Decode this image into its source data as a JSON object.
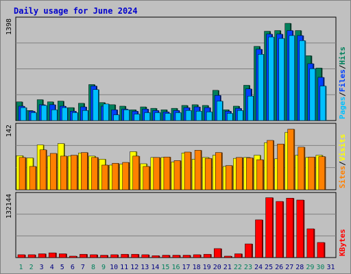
{
  "title": "Daily usage for June 2024",
  "colors": {
    "hits": "#00805c",
    "files": "#0040ff",
    "pages": "#00c0ff",
    "visits": "#ffff00",
    "sites": "#ff8000",
    "kbytes": "#ff0000",
    "weekend_day": "#00805c",
    "weekday": "#000080"
  },
  "chart_data": [
    {
      "type": "bar",
      "categories": [
        "1",
        "2",
        "3",
        "4",
        "5",
        "6",
        "7",
        "8",
        "9",
        "10",
        "11",
        "12",
        "13",
        "14",
        "15",
        "16",
        "17",
        "18",
        "19",
        "20",
        "21",
        "22",
        "23",
        "24",
        "25",
        "26",
        "27",
        "28",
        "29",
        "30",
        "31"
      ],
      "y_scale_label": "1398",
      "legend": [
        "Pages",
        "/",
        "Files",
        "/",
        "Hits"
      ],
      "ylim": [
        0,
        1398
      ],
      "series": [
        {
          "name": "Hits",
          "values": [
            260,
            140,
            290,
            260,
            270,
            180,
            240,
            500,
            250,
            220,
            200,
            150,
            190,
            170,
            150,
            170,
            210,
            220,
            210,
            420,
            150,
            200,
            490,
            1030,
            1240,
            1250,
            1350,
            1250,
            900,
            730,
            null
          ]
        },
        {
          "name": "Files",
          "values": [
            200,
            130,
            220,
            220,
            200,
            130,
            190,
            480,
            200,
            150,
            160,
            130,
            160,
            140,
            120,
            140,
            180,
            190,
            180,
            350,
            130,
            170,
            440,
            990,
            1200,
            1200,
            1250,
            1180,
            790,
            600,
            null
          ]
        },
        {
          "name": "Pages",
          "values": [
            180,
            110,
            210,
            150,
            180,
            110,
            140,
            430,
            230,
            80,
            150,
            90,
            110,
            110,
            100,
            110,
            140,
            130,
            120,
            270,
            100,
            140,
            340,
            920,
            1160,
            1140,
            1180,
            1110,
            720,
            480,
            null
          ]
        }
      ]
    },
    {
      "type": "bar",
      "categories": [
        "1",
        "2",
        "3",
        "4",
        "5",
        "6",
        "7",
        "8",
        "9",
        "10",
        "11",
        "12",
        "13",
        "14",
        "15",
        "16",
        "17",
        "18",
        "19",
        "20",
        "21",
        "22",
        "23",
        "24",
        "25",
        "26",
        "27",
        "28",
        "29",
        "30",
        "31"
      ],
      "y_scale_label": "142",
      "legend": [
        "Sites",
        "/",
        "Visits"
      ],
      "ylim": [
        0,
        142
      ],
      "series": [
        {
          "name": "Visits",
          "values": [
            76,
            71,
            100,
            75,
            103,
            75,
            82,
            75,
            68,
            55,
            57,
            85,
            58,
            72,
            72,
            62,
            82,
            68,
            72,
            77,
            52,
            70,
            72,
            77,
            105,
            69,
            128,
            77,
            72,
            77,
            null
          ]
        },
        {
          "name": "Sites",
          "values": [
            72,
            52,
            89,
            81,
            75,
            77,
            83,
            72,
            55,
            59,
            61,
            75,
            52,
            72,
            73,
            65,
            84,
            88,
            70,
            83,
            54,
            72,
            71,
            67,
            110,
            102,
            135,
            95,
            73,
            74,
            null
          ]
        }
      ]
    },
    {
      "type": "bar",
      "categories": [
        "1",
        "2",
        "3",
        "4",
        "5",
        "6",
        "7",
        "8",
        "9",
        "10",
        "11",
        "12",
        "13",
        "14",
        "15",
        "16",
        "17",
        "18",
        "19",
        "20",
        "21",
        "22",
        "23",
        "24",
        "25",
        "26",
        "27",
        "28",
        "29",
        "30",
        "31"
      ],
      "y_scale_label": "132144",
      "legend": [
        "KBytes"
      ],
      "ylim": [
        0,
        132144
      ],
      "series": [
        {
          "name": "KBytes",
          "values": [
            6000,
            6000,
            8000,
            10000,
            8000,
            3000,
            7000,
            6000,
            5000,
            6000,
            7000,
            7000,
            6000,
            4000,
            5000,
            5000,
            5000,
            6000,
            7000,
            19000,
            3000,
            8000,
            29000,
            80000,
            127000,
            119000,
            126000,
            122000,
            61000,
            32000,
            null
          ]
        }
      ]
    }
  ]
}
